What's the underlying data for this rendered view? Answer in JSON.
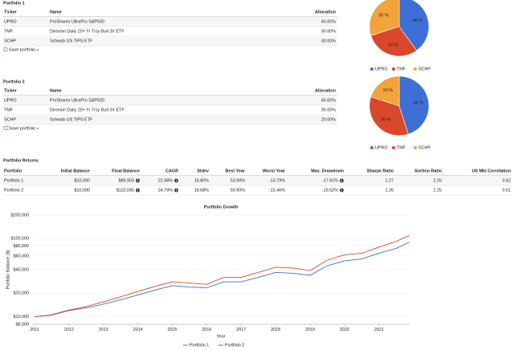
{
  "portfolios": [
    {
      "title": "Portfolio 1",
      "table": {
        "headers": [
          "Ticker",
          "Name",
          "Allocation"
        ],
        "rows": [
          [
            "UPRO",
            "ProShares UltraPro S&P500",
            "40.00%"
          ],
          [
            "TMF",
            "Direxion Daily 20+ Yr Trsy Bull 3X ETF",
            "30.00%"
          ],
          [
            "SCHP",
            "Schwab US TIPS ETF",
            "30.00%"
          ]
        ]
      },
      "link": "Save portfolio »"
    },
    {
      "title": "Portfolio 2",
      "table": {
        "headers": [
          "Ticker",
          "Name",
          "Allocation"
        ],
        "rows": [
          [
            "UPRO",
            "ProShares UltraPro S&P500",
            "45.00%"
          ],
          [
            "TMF",
            "Direxion Daily 20+ Yr Trsy Bull 3X ETF",
            "35.00%"
          ],
          [
            "SCHP",
            "Schwab US TIPS ETF",
            "20.00%"
          ]
        ]
      },
      "link": "Save portfolio »"
    }
  ],
  "returns": {
    "title": "Portfolio Returns",
    "headers": [
      "Portfolio",
      "Initial Balance",
      "Final Balance",
      "CAGR",
      "Stdev",
      "Best Year",
      "Worst Year",
      "Max. Drawdown",
      "Sharpe Ratio",
      "Sortino Ratio",
      "US Mkt Correlation"
    ],
    "rows": [
      [
        "Portfolio 1",
        "$10,000",
        "$89,953",
        "22.48%",
        "16.80%",
        "53.90%",
        "-13.79%",
        "-17.61%",
        "1.27",
        "2.25",
        "0.62"
      ],
      [
        "Portfolio 2",
        "$10,000",
        "$110,095",
        "24.79%",
        "18.68%",
        "59.90%",
        "-15.46%",
        "-19.52%",
        "1.26",
        "2.25",
        "0.61"
      ]
    ]
  },
  "chart_data": [
    {
      "type": "pie",
      "categories": [
        "UPRO",
        "TMF",
        "SCHP"
      ],
      "values": [
        40,
        30,
        30
      ],
      "value_labels": [
        "40 %",
        "30 %",
        "30 %"
      ],
      "colors": [
        "#3e6fd6",
        "#d9482a",
        "#f2a33a"
      ]
    },
    {
      "type": "pie",
      "categories": [
        "UPRO",
        "TMF",
        "SCHP"
      ],
      "values": [
        45,
        35,
        20
      ],
      "value_labels": [
        "45 %",
        "35 %",
        "20 %"
      ],
      "colors": [
        "#3e6fd6",
        "#d9482a",
        "#f2a33a"
      ]
    },
    {
      "type": "line",
      "title": "Portfolio Growth",
      "xlabel": "Year",
      "ylabel": "Portfolio Balance ($)",
      "log_y": true,
      "grid": true,
      "x": [
        2011.0,
        2011.5,
        2012.0,
        2012.5,
        2013.0,
        2013.5,
        2014.0,
        2014.5,
        2015.0,
        2015.5,
        2016.0,
        2016.5,
        2017.0,
        2017.5,
        2018.0,
        2018.5,
        2019.0,
        2019.5,
        2020.0,
        2020.5,
        2021.0,
        2021.5,
        2021.88
      ],
      "series": [
        {
          "name": "Portfolio 1",
          "color": "#3e6fd6",
          "values": [
            10000,
            10500,
            12000,
            13000,
            14500,
            16500,
            19000,
            22000,
            25000,
            24000,
            23500,
            28000,
            28000,
            32000,
            37000,
            36000,
            34000,
            45000,
            52000,
            55000,
            65000,
            75000,
            89953
          ]
        },
        {
          "name": "Portfolio 2",
          "color": "#d9482a",
          "values": [
            10000,
            10600,
            12200,
            13500,
            15500,
            18000,
            21000,
            24500,
            28000,
            27000,
            26000,
            32000,
            32000,
            37000,
            43000,
            42000,
            39000,
            53000,
            62000,
            65000,
            78000,
            92000,
            110095
          ]
        }
      ],
      "xlim": [
        2010.93,
        2021.89
      ],
      "xticks": [
        2011,
        2012,
        2013,
        2014,
        2015,
        2016,
        2017,
        2018,
        2019,
        2020,
        2021
      ],
      "ylim": [
        8000,
        200000
      ],
      "yticks": [
        {
          "value": 8000,
          "label": "$8,000"
        },
        {
          "value": 10000,
          "label": "$10,000"
        },
        {
          "value": 20000,
          "label": "$20,000"
        },
        {
          "value": 40000,
          "label": "$40,000"
        },
        {
          "value": 60000,
          "label": "$60,000"
        },
        {
          "value": 80000,
          "label": "$80,000"
        },
        {
          "value": 100000,
          "label": "$100,000"
        },
        {
          "value": 200000,
          "label": "$200,000"
        }
      ],
      "legend": "bottom"
    }
  ]
}
